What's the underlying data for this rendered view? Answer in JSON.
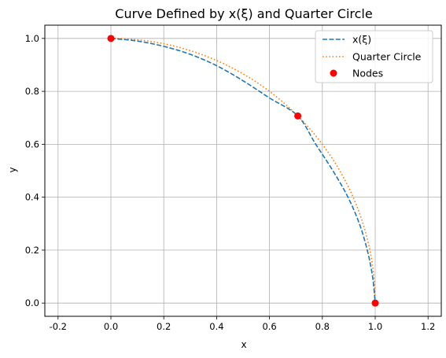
{
  "chart_data": {
    "type": "line",
    "title": "Curve Defined by x(ξ) and Quarter Circle",
    "xlabel": "x",
    "ylabel": "y",
    "xlim": [
      -0.25,
      1.25
    ],
    "ylim": [
      -0.05,
      1.05
    ],
    "xticks": [
      -0.2,
      0.0,
      0.2,
      0.4,
      0.6,
      0.8,
      1.0,
      1.2
    ],
    "yticks": [
      0.0,
      0.2,
      0.4,
      0.6,
      0.8,
      1.0
    ],
    "grid": true,
    "legend_position": "top-right",
    "series": [
      {
        "name": "x(ξ)",
        "style": "dashed",
        "color": "#1f77b4",
        "points": [
          [
            0.0,
            1.0
          ],
          [
            0.1,
            0.99
          ],
          [
            0.2,
            0.97
          ],
          [
            0.3,
            0.94
          ],
          [
            0.4,
            0.897
          ],
          [
            0.5,
            0.84
          ],
          [
            0.6,
            0.775
          ],
          [
            0.7071,
            0.7071
          ],
          [
            0.775,
            0.6
          ],
          [
            0.84,
            0.5
          ],
          [
            0.897,
            0.4
          ],
          [
            0.94,
            0.3
          ],
          [
            0.97,
            0.2
          ],
          [
            0.99,
            0.1
          ],
          [
            1.0,
            0.0
          ]
        ]
      },
      {
        "name": "Quarter Circle",
        "style": "dotted",
        "color": "#ff7f0e",
        "function": "quarter_circle"
      },
      {
        "name": "Nodes",
        "style": "scatter",
        "color": "#ff0000",
        "points": [
          [
            0.0,
            1.0
          ],
          [
            0.7071,
            0.7071
          ],
          [
            1.0,
            0.0
          ]
        ]
      }
    ]
  }
}
